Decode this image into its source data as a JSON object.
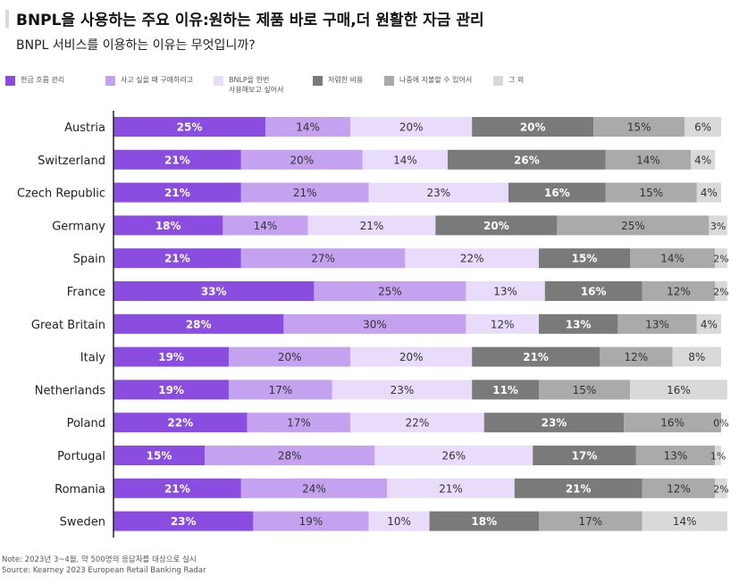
{
  "title": "BNPL을 사용하는 주요 이유:원하는 제품 바로 구매,더 원활한 자금 관리",
  "subtitle": "BNPL 서비스를 이용하는 이유는 무엇입니까?",
  "note": "Note: 2023년 3~4월, 약 500명의 응답자를 대상으로 실시",
  "source": "Source: Kearney 2023 European Retail Banking Radar",
  "chart_data": {
    "type": "bar",
    "orientation": "horizontal",
    "stacked": true,
    "categories": [
      "Austria",
      "Switzerland",
      "Czech Republic",
      "Germany",
      "Spain",
      "France",
      "Great Britain",
      "Italy",
      "Netherlands",
      "Poland",
      "Portugal",
      "Romania",
      "Sweden"
    ],
    "series": [
      {
        "name": "현금 흐름 관리",
        "color": "#8a4de0",
        "label_color": "#ffffff",
        "values": [
          25,
          21,
          21,
          18,
          21,
          33,
          28,
          19,
          19,
          22,
          15,
          21,
          23
        ]
      },
      {
        "name": "사고 싶을 때 구매하려고",
        "color": "#c4a2ef",
        "label_color": "#333333",
        "values": [
          14,
          20,
          21,
          14,
          27,
          25,
          30,
          20,
          17,
          17,
          28,
          24,
          19
        ]
      },
      {
        "name": "BNLP을 한번\n사용해보고 싶어서",
        "color": "#e9dcfa",
        "label_color": "#333333",
        "values": [
          20,
          14,
          23,
          21,
          22,
          13,
          12,
          20,
          23,
          22,
          26,
          21,
          10
        ]
      },
      {
        "name": "저렴한 비용",
        "color": "#7a7a7a",
        "label_color": "#ffffff",
        "values": [
          20,
          26,
          16,
          20,
          15,
          16,
          13,
          21,
          11,
          23,
          17,
          21,
          18
        ]
      },
      {
        "name": "나중에 지불할 수 있어서",
        "color": "#aaaaaa",
        "label_color": "#333333",
        "values": [
          15,
          14,
          15,
          25,
          14,
          12,
          13,
          12,
          15,
          16,
          13,
          12,
          17
        ]
      },
      {
        "name": "그 외",
        "color": "#d9d9d9",
        "label_color": "#333333",
        "values": [
          6,
          4,
          4,
          3,
          2,
          2,
          4,
          8,
          16,
          0,
          1,
          2,
          14
        ]
      }
    ],
    "value_suffix": "%",
    "xlim": [
      0,
      100
    ],
    "legend_position": "top"
  }
}
